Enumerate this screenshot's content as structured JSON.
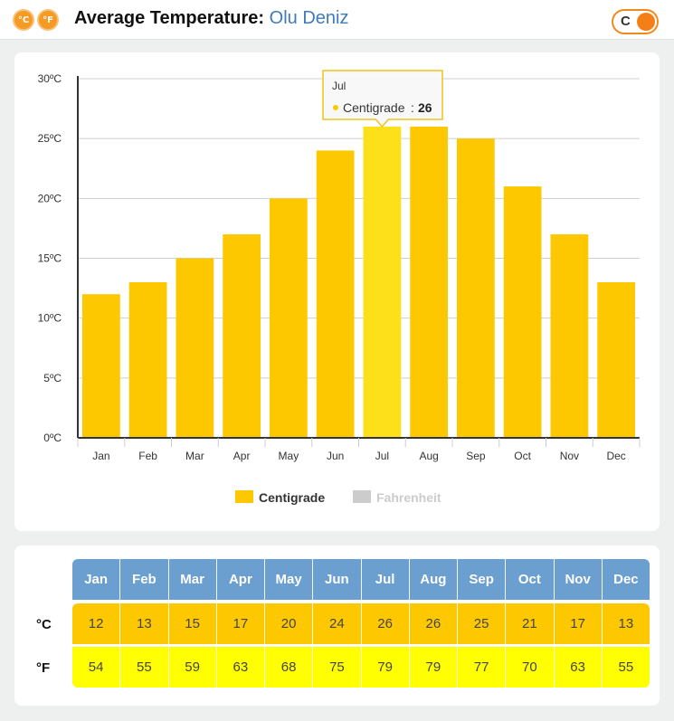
{
  "header": {
    "unit_icons": [
      {
        "label": "°C",
        "icon": "celsius-icon"
      },
      {
        "label": "°F",
        "icon": "fahrenheit-icon"
      }
    ],
    "title_label": "Average Temperature:",
    "location": "Olu Deniz",
    "toggle_label": "C"
  },
  "colors": {
    "bar": "#fdc800",
    "bar_highlight": "#fde01a",
    "header_row": "#6a9fd0",
    "celsius_row": "#fdc800",
    "fahrenheit_row": "#ffff00",
    "accent": "#f57f17"
  },
  "chart_data": {
    "type": "bar",
    "categories": [
      "Jan",
      "Feb",
      "Mar",
      "Apr",
      "May",
      "Jun",
      "Jul",
      "Aug",
      "Sep",
      "Oct",
      "Nov",
      "Dec"
    ],
    "series": [
      {
        "name": "Centigrade",
        "values": [
          12,
          13,
          15,
          17,
          20,
          24,
          26,
          26,
          25,
          21,
          17,
          13
        ],
        "visible": true
      },
      {
        "name": "Fahrenheit",
        "values": [
          54,
          55,
          59,
          63,
          68,
          75,
          79,
          79,
          77,
          70,
          63,
          55
        ],
        "visible": false
      }
    ],
    "ylim": [
      0,
      30
    ],
    "yticks": [
      "0ºC",
      "5ºC",
      "10ºC",
      "15ºC",
      "20ºC",
      "25ºC",
      "30ºC"
    ],
    "grid": true,
    "legend_placement": "bottom-center",
    "tooltip": {
      "category": "Jul",
      "series": "Centigrade",
      "value": 26
    }
  },
  "table": {
    "months": [
      "Jan",
      "Feb",
      "Mar",
      "Apr",
      "May",
      "Jun",
      "Jul",
      "Aug",
      "Sep",
      "Oct",
      "Nov",
      "Dec"
    ],
    "rows": [
      {
        "label": "°C",
        "values": [
          "12",
          "13",
          "15",
          "17",
          "20",
          "24",
          "26",
          "26",
          "25",
          "21",
          "17",
          "13"
        ]
      },
      {
        "label": "°F",
        "values": [
          "54",
          "55",
          "59",
          "63",
          "68",
          "75",
          "79",
          "79",
          "77",
          "70",
          "63",
          "55"
        ]
      }
    ]
  }
}
